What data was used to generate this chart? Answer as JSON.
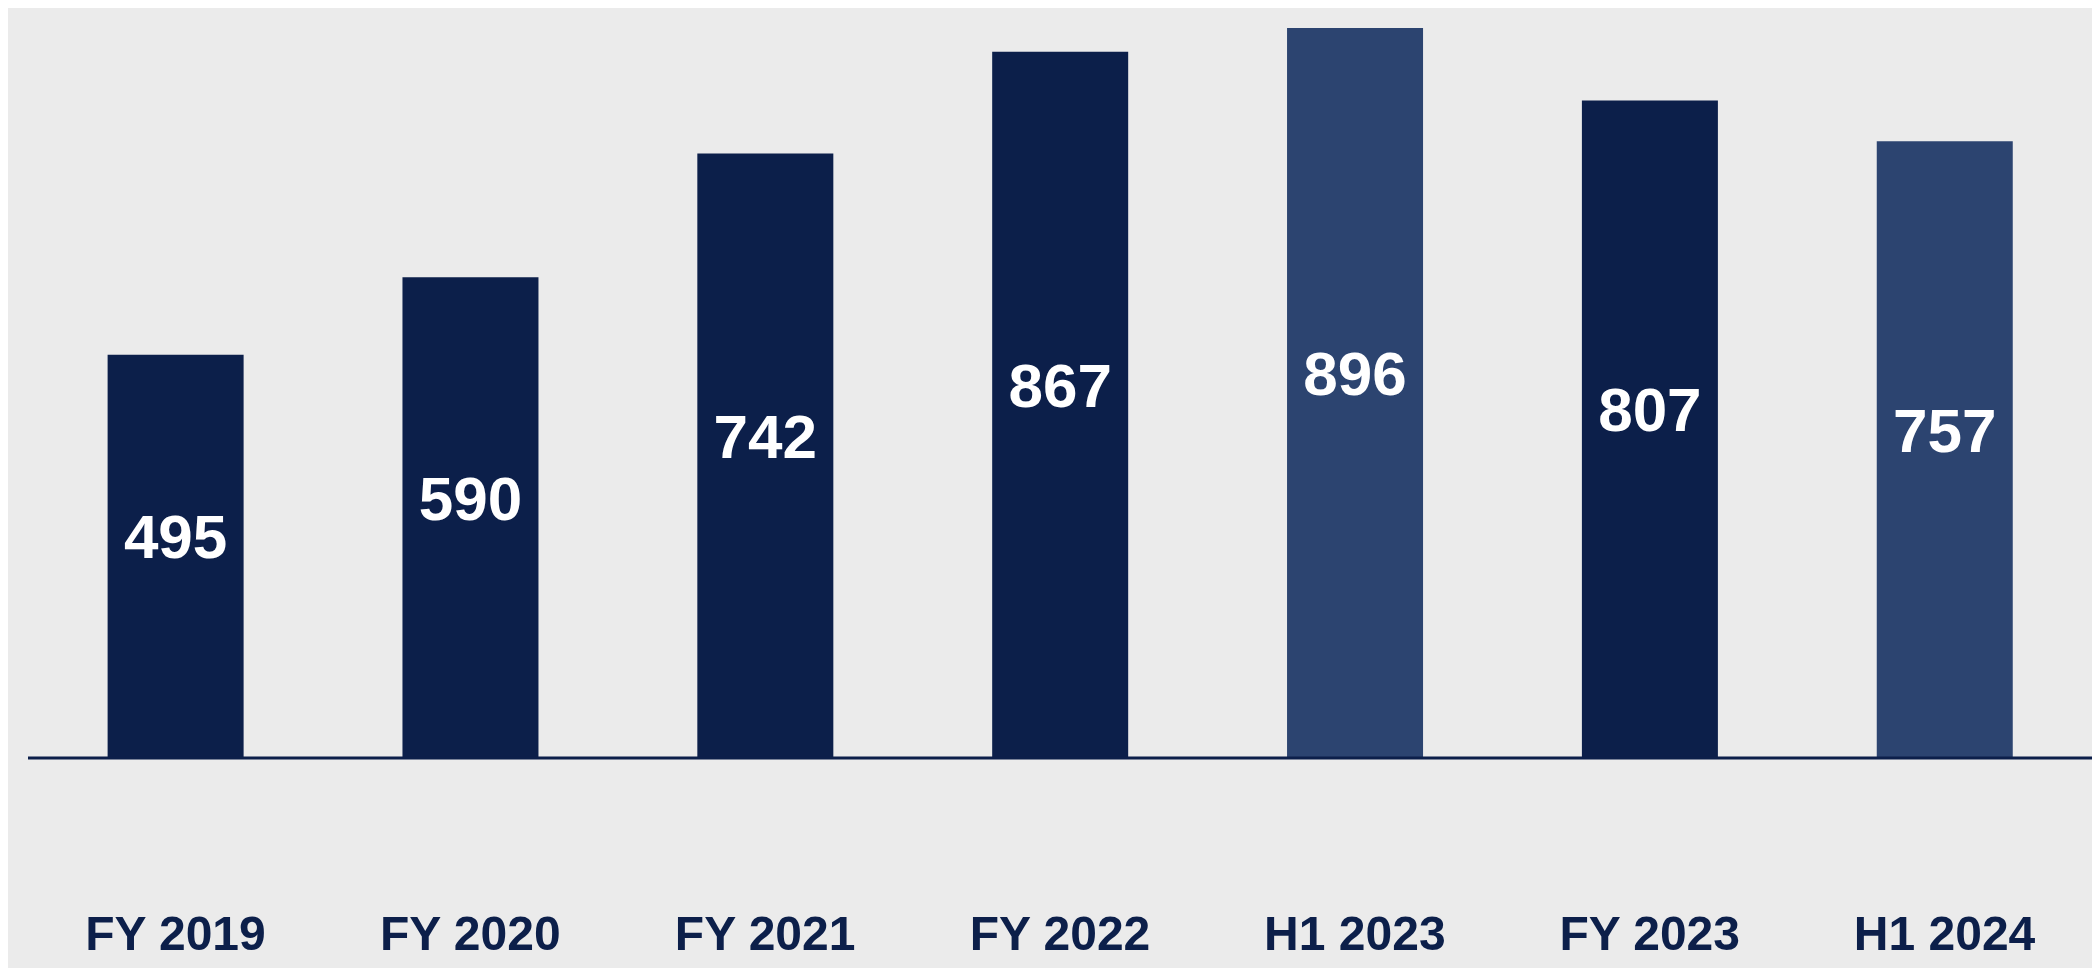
{
  "chart_data": {
    "type": "bar",
    "categories": [
      "FY 2019",
      "FY 2020",
      "FY 2021",
      "FY 2022",
      "H1 2023",
      "FY 2023",
      "H1 2024"
    ],
    "values": [
      495,
      590,
      742,
      867,
      896,
      807,
      757
    ],
    "colors": [
      "#0c1f4a",
      "#0c1f4a",
      "#0c1f4a",
      "#0c1f4a",
      "#2c4470",
      "#0c1f4a",
      "#2c4470"
    ],
    "data_labels": true,
    "grid": false,
    "legend": false,
    "tick_labels": "x"
  }
}
